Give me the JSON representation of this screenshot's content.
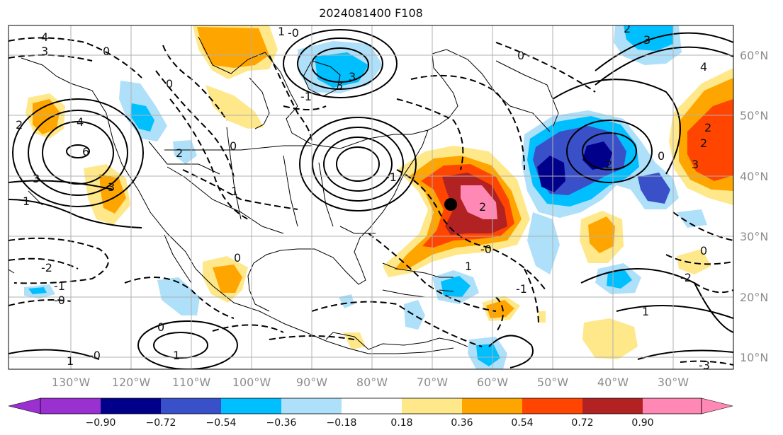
{
  "title": "2024081400 F108",
  "lon_labels": [
    "130°W",
    "120°W",
    "110°W",
    "100°W",
    "90°W",
    "80°W",
    "70°W",
    "60°W",
    "50°W",
    "40°W",
    "30°W"
  ],
  "lat_labels": [
    "60°N",
    "50°N",
    "40°N",
    "30°N",
    "20°N",
    "10°N"
  ],
  "colorbar": {
    "tick_labels": [
      "−0.90",
      "−0.72",
      "−0.54",
      "−0.36",
      "−0.18",
      "0.18",
      "0.36",
      "0.54",
      "0.72",
      "0.90"
    ],
    "colors": [
      "#9b30d0",
      "#00008b",
      "#3a50c9",
      "#00bfff",
      "#aee0fa",
      "#ffffff",
      "#ffe88a",
      "#ffa500",
      "#ff4500",
      "#b22222",
      "#ff89b4"
    ]
  },
  "contour_labels": [
    "4",
    "3",
    "3",
    "0",
    "2",
    "4",
    "6",
    "3",
    "1",
    "0",
    "2",
    "-1",
    "3",
    "-0",
    "1",
    "0",
    "1",
    "0",
    "-2",
    "-1",
    "-0",
    "0",
    "1",
    "-0",
    "1",
    "-1",
    "0",
    "3",
    "2",
    "2",
    "3",
    "2",
    "2",
    "4",
    "0",
    "2",
    "1",
    "-0",
    "-1",
    "-2",
    "0",
    "1",
    "-3",
    "3"
  ],
  "marker": {
    "name": "black-dot",
    "color": "#000000"
  }
}
